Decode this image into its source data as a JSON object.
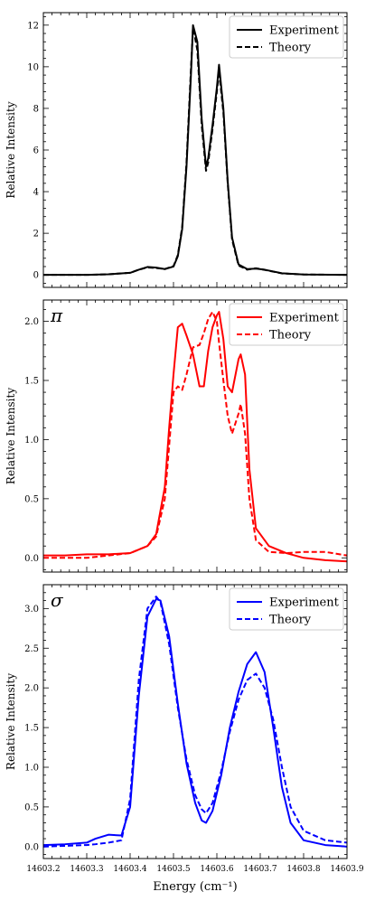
{
  "chart_data": [
    {
      "type": "line",
      "panel_label": "",
      "ylabel": "Relative Intensity",
      "xlabel": "",
      "xlim": [
        14603.2,
        14603.9
      ],
      "ylim": [
        -0.6,
        12.6
      ],
      "yticks": [
        0,
        2,
        4,
        6,
        8,
        10,
        12
      ],
      "ytick_labels": [
        "0",
        "2",
        "4",
        "6",
        "8",
        "10",
        "12"
      ],
      "color": "#000000",
      "legend_loc": "top-right",
      "series": [
        {
          "name": "Experiment",
          "style": "solid",
          "x": [
            14603.2,
            14603.3,
            14603.35,
            14603.4,
            14603.42,
            14603.44,
            14603.46,
            14603.48,
            14603.5,
            14603.51,
            14603.52,
            14603.53,
            14603.54,
            14603.545,
            14603.555,
            14603.565,
            14603.575,
            14603.58,
            14603.59,
            14603.6,
            14603.605,
            14603.615,
            14603.625,
            14603.635,
            14603.65,
            14603.67,
            14603.69,
            14603.71,
            14603.75,
            14603.8,
            14603.9
          ],
          "y": [
            0,
            0,
            0.03,
            0.1,
            0.25,
            0.38,
            0.35,
            0.28,
            0.4,
            0.9,
            2.2,
            5.2,
            9.5,
            12.0,
            11.2,
            7.5,
            5.2,
            5.6,
            7.2,
            9.0,
            10.1,
            8.0,
            4.5,
            1.8,
            0.5,
            0.28,
            0.3,
            0.25,
            0.08,
            0.02,
            0
          ]
        },
        {
          "name": "Theory",
          "style": "dashed",
          "x": [
            14603.2,
            14603.3,
            14603.35,
            14603.4,
            14603.42,
            14603.44,
            14603.46,
            14603.48,
            14603.5,
            14603.51,
            14603.52,
            14603.53,
            14603.54,
            14603.545,
            14603.555,
            14603.565,
            14603.575,
            14603.58,
            14603.59,
            14603.6,
            14603.605,
            14603.615,
            14603.625,
            14603.635,
            14603.65,
            14603.67,
            14603.69,
            14603.71,
            14603.75,
            14603.8,
            14603.9
          ],
          "y": [
            0,
            0,
            0.03,
            0.1,
            0.25,
            0.36,
            0.33,
            0.28,
            0.42,
            0.95,
            2.3,
            5.4,
            9.8,
            11.9,
            10.8,
            7.2,
            5.0,
            5.4,
            7.0,
            8.8,
            9.8,
            7.8,
            4.4,
            1.7,
            0.45,
            0.25,
            0.32,
            0.24,
            0.07,
            0.02,
            0
          ]
        }
      ]
    },
    {
      "type": "line",
      "panel_label": "π",
      "ylabel": "Relative Intensity",
      "xlabel": "",
      "xlim": [
        14603.2,
        14603.9
      ],
      "ylim": [
        -0.12,
        2.18
      ],
      "yticks": [
        0.0,
        0.5,
        1.0,
        1.5,
        2.0
      ],
      "ytick_labels": [
        "0.0",
        "0.5",
        "1.0",
        "1.5",
        "2.0"
      ],
      "color": "#ff0000",
      "legend_loc": "top-right",
      "series": [
        {
          "name": "Experiment",
          "style": "solid",
          "x": [
            14603.2,
            14603.25,
            14603.3,
            14603.35,
            14603.4,
            14603.44,
            14603.46,
            14603.48,
            14603.49,
            14603.5,
            14603.51,
            14603.52,
            14603.53,
            14603.545,
            14603.56,
            14603.57,
            14603.58,
            14603.59,
            14603.6,
            14603.605,
            14603.615,
            14603.625,
            14603.635,
            14603.65,
            14603.655,
            14603.665,
            14603.675,
            14603.69,
            14603.72,
            14603.76,
            14603.8,
            14603.85,
            14603.9
          ],
          "y": [
            0.02,
            0.02,
            0.03,
            0.03,
            0.04,
            0.1,
            0.2,
            0.6,
            1.1,
            1.55,
            1.95,
            1.98,
            1.88,
            1.72,
            1.45,
            1.45,
            1.75,
            1.95,
            2.05,
            2.08,
            1.85,
            1.45,
            1.4,
            1.68,
            1.72,
            1.55,
            0.75,
            0.25,
            0.1,
            0.04,
            0.0,
            -0.02,
            -0.03
          ]
        },
        {
          "name": "Theory",
          "style": "dashed",
          "x": [
            14603.2,
            14603.25,
            14603.3,
            14603.35,
            14603.4,
            14603.44,
            14603.46,
            14603.48,
            14603.49,
            14603.5,
            14603.51,
            14603.52,
            14603.53,
            14603.545,
            14603.56,
            14603.57,
            14603.58,
            14603.59,
            14603.6,
            14603.605,
            14603.615,
            14603.625,
            14603.635,
            14603.65,
            14603.655,
            14603.665,
            14603.675,
            14603.69,
            14603.72,
            14603.76,
            14603.8,
            14603.85,
            14603.9
          ],
          "y": [
            0.0,
            0.0,
            0.0,
            0.02,
            0.04,
            0.1,
            0.18,
            0.5,
            0.95,
            1.4,
            1.45,
            1.42,
            1.55,
            1.78,
            1.8,
            1.9,
            2.02,
            2.08,
            2.0,
            1.82,
            1.5,
            1.2,
            1.05,
            1.22,
            1.3,
            1.05,
            0.5,
            0.15,
            0.05,
            0.04,
            0.05,
            0.05,
            0.02
          ]
        }
      ]
    },
    {
      "type": "line",
      "panel_label": "σ",
      "ylabel": "Relative Intensity",
      "xlabel": "Energy (cm⁻¹)",
      "xlim": [
        14603.2,
        14603.9
      ],
      "ylim": [
        -0.15,
        3.3
      ],
      "yticks": [
        0.0,
        0.5,
        1.0,
        1.5,
        2.0,
        2.5,
        3.0
      ],
      "ytick_labels": [
        "0.0",
        "0.5",
        "1.0",
        "1.5",
        "2.0",
        "2.5",
        "3.0"
      ],
      "xticks": [
        14603.2,
        14603.3,
        14603.4,
        14603.5,
        14603.6,
        14603.7,
        14603.8,
        14603.9
      ],
      "xtick_labels": [
        "14603.2",
        "14603.3",
        "14603.4",
        "14603.5",
        "14603.6",
        "14603.7",
        "14603.8",
        "14603.9"
      ],
      "color": "#0000ff",
      "legend_loc": "top-right",
      "series": [
        {
          "name": "Experiment",
          "style": "solid",
          "x": [
            14603.2,
            14603.25,
            14603.3,
            14603.32,
            14603.35,
            14603.38,
            14603.4,
            14603.42,
            14603.44,
            14603.46,
            14603.47,
            14603.49,
            14603.51,
            14603.53,
            14603.55,
            14603.565,
            14603.575,
            14603.59,
            14603.61,
            14603.63,
            14603.65,
            14603.67,
            14603.69,
            14603.71,
            14603.73,
            14603.75,
            14603.77,
            14603.8,
            14603.85,
            14603.9
          ],
          "y": [
            0.02,
            0.03,
            0.05,
            0.1,
            0.15,
            0.14,
            0.5,
            1.9,
            2.9,
            3.12,
            3.1,
            2.65,
            1.8,
            1.05,
            0.55,
            0.33,
            0.3,
            0.45,
            0.9,
            1.5,
            1.95,
            2.3,
            2.45,
            2.2,
            1.5,
            0.75,
            0.3,
            0.08,
            0.02,
            0.0
          ]
        },
        {
          "name": "Theory",
          "style": "dashed",
          "x": [
            14603.2,
            14603.25,
            14603.3,
            14603.32,
            14603.35,
            14603.38,
            14603.4,
            14603.42,
            14603.44,
            14603.46,
            14603.47,
            14603.49,
            14603.51,
            14603.53,
            14603.55,
            14603.565,
            14603.575,
            14603.59,
            14603.61,
            14603.63,
            14603.65,
            14603.67,
            14603.69,
            14603.71,
            14603.73,
            14603.75,
            14603.77,
            14603.8,
            14603.85,
            14603.9
          ],
          "y": [
            0.0,
            0.01,
            0.02,
            0.03,
            0.05,
            0.08,
            0.6,
            2.1,
            3.0,
            3.15,
            3.08,
            2.55,
            1.75,
            1.1,
            0.65,
            0.47,
            0.42,
            0.55,
            0.95,
            1.45,
            1.85,
            2.1,
            2.18,
            2.0,
            1.6,
            1.0,
            0.5,
            0.2,
            0.08,
            0.05
          ]
        }
      ]
    }
  ]
}
